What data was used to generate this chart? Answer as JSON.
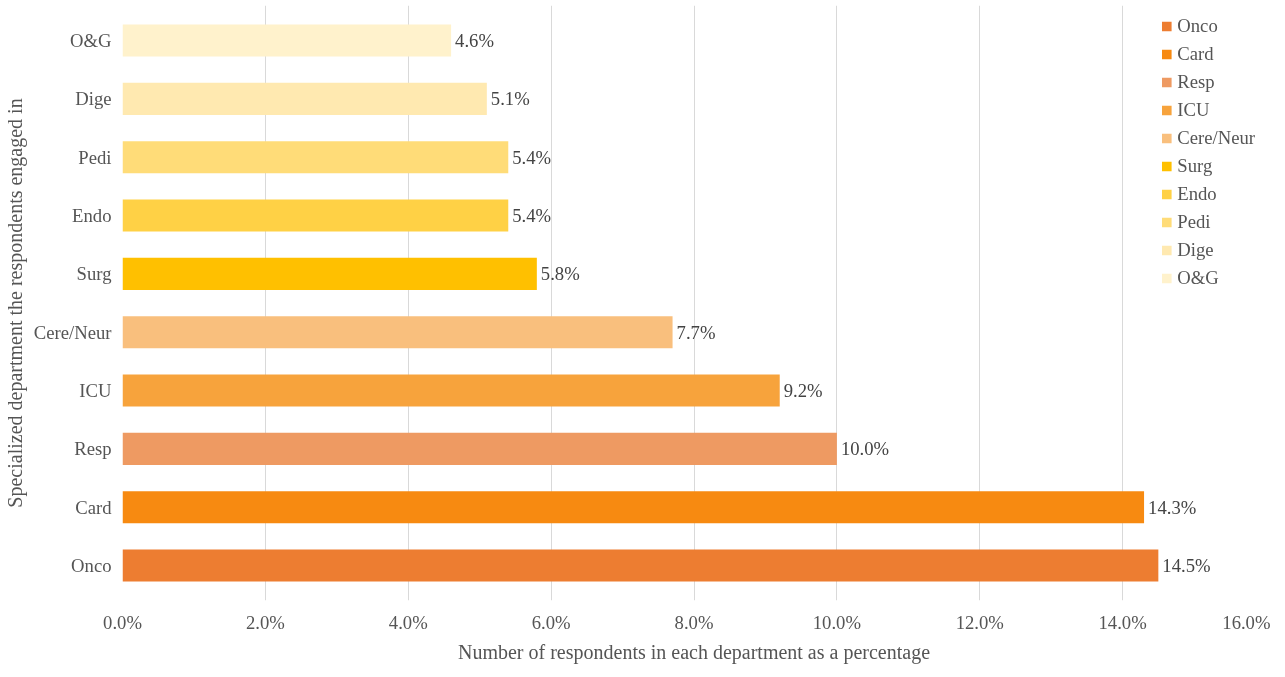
{
  "chart_data": {
    "type": "bar",
    "orientation": "horizontal",
    "stacked": true,
    "xlabel": "Number of respondents in each department as a percentage",
    "ylabel": "Specialized department the respondents engaged in",
    "categories": [
      "O&G",
      "Dige",
      "Pedi",
      "Endo",
      "Surg",
      "Cere/Neur",
      "ICU",
      "Resp",
      "Card",
      "Onco"
    ],
    "series": [
      {
        "name": "Onco",
        "color": "#ed7d31",
        "values": [
          null,
          null,
          null,
          null,
          null,
          null,
          null,
          null,
          null,
          14.5
        ],
        "value_labels": [
          null,
          null,
          null,
          null,
          null,
          null,
          null,
          null,
          null,
          "14.5%"
        ]
      },
      {
        "name": "Card",
        "color": "#f78a11",
        "values": [
          null,
          null,
          null,
          null,
          null,
          null,
          null,
          null,
          14.3,
          null
        ],
        "value_labels": [
          null,
          null,
          null,
          null,
          null,
          null,
          null,
          null,
          "14.3%",
          null
        ]
      },
      {
        "name": "Resp",
        "color": "#ee9a62",
        "values": [
          null,
          null,
          null,
          null,
          null,
          null,
          null,
          10.0,
          null,
          null
        ],
        "value_labels": [
          null,
          null,
          null,
          null,
          null,
          null,
          null,
          "10.0%",
          null,
          null
        ]
      },
      {
        "name": "ICU",
        "color": "#f7a33c",
        "values": [
          null,
          null,
          null,
          null,
          null,
          null,
          9.2,
          null,
          null,
          null
        ],
        "value_labels": [
          null,
          null,
          null,
          null,
          null,
          null,
          "9.2%",
          null,
          null,
          null
        ]
      },
      {
        "name": "Cere/Neur",
        "color": "#f9bf7d",
        "values": [
          null,
          null,
          null,
          null,
          null,
          7.7,
          null,
          null,
          null,
          null
        ],
        "value_labels": [
          null,
          null,
          null,
          null,
          null,
          "7.7%",
          null,
          null,
          null,
          null
        ]
      },
      {
        "name": "Surg",
        "color": "#ffc000",
        "values": [
          null,
          null,
          null,
          null,
          5.8,
          null,
          null,
          null,
          null,
          null
        ],
        "value_labels": [
          null,
          null,
          null,
          null,
          "5.8%",
          null,
          null,
          null,
          null,
          null
        ]
      },
      {
        "name": "Endo",
        "color": "#ffd145",
        "values": [
          null,
          null,
          null,
          5.4,
          null,
          null,
          null,
          null,
          null,
          null
        ],
        "value_labels": [
          null,
          null,
          null,
          "5.4%",
          null,
          null,
          null,
          null,
          null,
          null
        ]
      },
      {
        "name": "Pedi",
        "color": "#ffdc78",
        "values": [
          null,
          null,
          5.4,
          null,
          null,
          null,
          null,
          null,
          null,
          null
        ],
        "value_labels": [
          null,
          null,
          "5.4%",
          null,
          null,
          null,
          null,
          null,
          null,
          null
        ]
      },
      {
        "name": "Dige",
        "color": "#ffe9b0",
        "values": [
          null,
          5.1,
          null,
          null,
          null,
          null,
          null,
          null,
          null,
          null
        ],
        "value_labels": [
          null,
          "5.1%",
          null,
          null,
          null,
          null,
          null,
          null,
          null,
          null
        ]
      },
      {
        "name": "O&G",
        "color": "#fff2cc",
        "values": [
          4.6,
          null,
          null,
          null,
          null,
          null,
          null,
          null,
          null,
          null
        ],
        "value_labels": [
          "4.6%",
          null,
          null,
          null,
          null,
          null,
          null,
          null,
          null,
          null
        ]
      }
    ],
    "xlim": [
      0,
      16
    ],
    "xticks": [
      {
        "value": 0,
        "label": "0.0%"
      },
      {
        "value": 2,
        "label": "2.0%"
      },
      {
        "value": 4,
        "label": "4.0%"
      },
      {
        "value": 6,
        "label": "6.0%"
      },
      {
        "value": 8,
        "label": "8.0%"
      },
      {
        "value": 10,
        "label": "10.0%"
      },
      {
        "value": 12,
        "label": "12.0%"
      },
      {
        "value": 14,
        "label": "14.0%"
      },
      {
        "value": 16,
        "label": "16.0%"
      }
    ],
    "grid": "x",
    "legend": "top right"
  }
}
